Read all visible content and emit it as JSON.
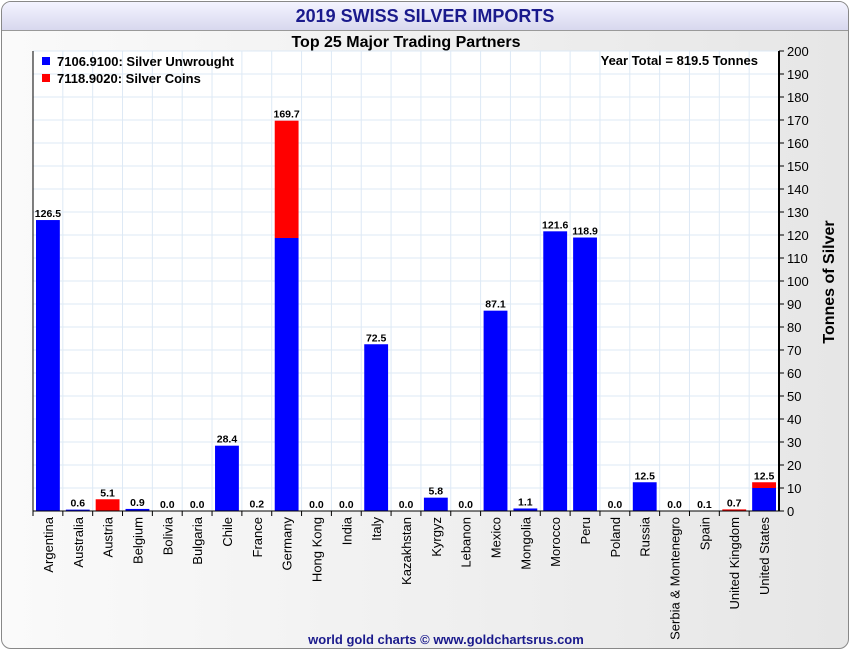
{
  "chart_data": {
    "type": "bar",
    "stacked": true,
    "title": "2019 SWISS SILVER IMPORTS",
    "subtitle": "Top 25 Major Trading Partners",
    "annotation": "Year Total = 819.5 Tonnes",
    "ylabel": "Tonnes of Silver",
    "ylim": [
      0,
      200
    ],
    "ytick_step": 10,
    "grid": true,
    "legend_position": "top-left",
    "footer": "world gold charts © www.goldchartsrus.com",
    "categories": [
      "Argentina",
      "Australia",
      "Austria",
      "Belgium",
      "Bolivia",
      "Bulgaria",
      "Chile",
      "France",
      "Germany",
      "Hong Kong",
      "India",
      "Italy",
      "Kazakhstan",
      "Kyrgyz",
      "Lebanon",
      "Mexico",
      "Mongolia",
      "Morocco",
      "Peru",
      "Poland",
      "Russia",
      "Serbia & Montenegro",
      "Spain",
      "United Kingdom",
      "United States"
    ],
    "series": [
      {
        "name": "7106.9100: Silver Unwrought",
        "color": "#0000ff",
        "values": [
          126.5,
          0.6,
          0,
          0.9,
          0,
          0,
          28.4,
          0.2,
          118.7,
          0,
          0,
          72.5,
          0,
          5.8,
          0,
          87.1,
          1.1,
          121.6,
          118.9,
          0,
          12.5,
          0,
          0.1,
          0,
          10.0
        ]
      },
      {
        "name": "7118.9020: Silver Coins",
        "color": "#ff0000",
        "values": [
          0,
          0,
          5.1,
          0,
          0,
          0,
          0,
          0,
          51.0,
          0,
          0,
          0,
          0,
          0,
          0,
          0,
          0,
          0,
          0,
          0,
          0,
          0,
          0,
          0.7,
          2.5
        ]
      }
    ],
    "totals": [
      "126.5",
      "0.6",
      "5.1",
      "0.9",
      "0.0",
      "0.0",
      "28.4",
      "0.2",
      "169.7",
      "0.0",
      "0.0",
      "72.5",
      "0.0",
      "5.8",
      "0.0",
      "87.1",
      "1.1",
      "121.6",
      "118.9",
      "0.0",
      "12.5",
      "0.0",
      "0.1",
      "0.7",
      "12.5"
    ]
  }
}
